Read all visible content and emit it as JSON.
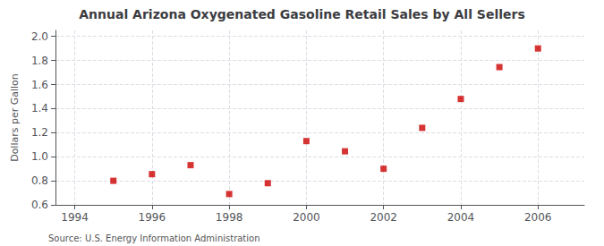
{
  "chart_data": {
    "type": "scatter",
    "title": "Annual Arizona Oxygenated Gasoline Retail Sales by All Sellers",
    "ylabel": "Dollars per Gallon",
    "source": "Source: U.S. Energy Information Administration",
    "x": [
      1995,
      1996,
      1997,
      1998,
      1999,
      2000,
      2001,
      2002,
      2003,
      2004,
      2005,
      2006
    ],
    "values": [
      0.8,
      0.855,
      0.93,
      0.69,
      0.78,
      1.13,
      1.045,
      0.9,
      1.24,
      1.48,
      1.745,
      1.9
    ],
    "color": "#cc0000",
    "marker": "square",
    "xlim": [
      1993.5,
      2007.2
    ],
    "xticks": [
      1994,
      1996,
      1998,
      2000,
      2002,
      2004,
      2006
    ],
    "ylim": [
      0.6,
      2.05
    ],
    "yticks": [
      0.6,
      0.8,
      {
        "value": 1.0,
        "label": "1.0"
      },
      1.2,
      1.4,
      1.6,
      1.8,
      {
        "value": 2.0,
        "label": "2.0"
      }
    ],
    "grid": true
  }
}
